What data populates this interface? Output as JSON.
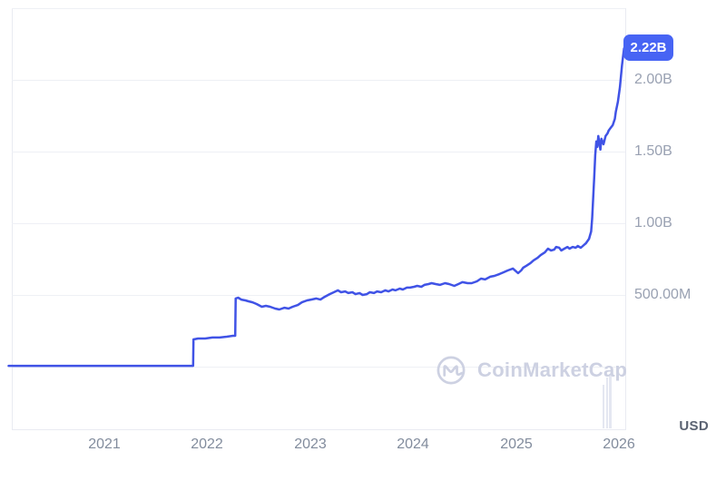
{
  "unit_label": "USD",
  "watermark_text": "CoinMarketCap",
  "badge": {
    "label": "2.22B"
  },
  "colors": {
    "line": "#4053e6",
    "badge_bg": "#4764f4",
    "badge_text": "#ffffff",
    "gridline": "#eef0f5",
    "watermark": "#cdd1e2"
  },
  "decor": {
    "volume_bars": [
      {
        "x": 664,
        "top": 424,
        "h": 48,
        "w": 2
      },
      {
        "x": 667.5,
        "top": 416,
        "h": 56,
        "w": 2
      },
      {
        "x": 670.5,
        "top": 412,
        "h": 60,
        "w": 3
      }
    ]
  },
  "chart_data": {
    "type": "line",
    "title": "",
    "xlabel": "",
    "ylabel": "USD",
    "unit": "USD",
    "legend": "none",
    "grid": "horizontal",
    "x_range": [
      2020.05,
      2026.12
    ],
    "y_range": [
      0,
      2500
    ],
    "value_unit": "millions USD",
    "last_value_label": "2.22B",
    "x_ticks": [
      2021,
      2022,
      2023,
      2024,
      2025,
      2026
    ],
    "y_ticks": [
      {
        "label": "2.00B",
        "value": 2000
      },
      {
        "label": "1.50B",
        "value": 1500
      },
      {
        "label": "1.00B",
        "value": 1000
      },
      {
        "label": "500.00M",
        "value": 500
      }
    ],
    "y_gridline_values": [
      2500,
      2000,
      1500,
      1000,
      500,
      0
    ],
    "points": [
      [
        2020.07,
        6
      ],
      [
        2021.0,
        6
      ],
      [
        2021.5,
        6
      ],
      [
        2021.84,
        6
      ],
      [
        2021.862,
        6
      ],
      [
        2021.866,
        190
      ],
      [
        2021.91,
        196
      ],
      [
        2021.98,
        196
      ],
      [
        2022.05,
        203
      ],
      [
        2022.12,
        203
      ],
      [
        2022.19,
        209
      ],
      [
        2022.25,
        215
      ],
      [
        2022.272,
        215
      ],
      [
        2022.276,
        475
      ],
      [
        2022.3,
        481
      ],
      [
        2022.33,
        468
      ],
      [
        2022.37,
        462
      ],
      [
        2022.4,
        456
      ],
      [
        2022.44,
        449
      ],
      [
        2022.48,
        437
      ],
      [
        2022.53,
        418
      ],
      [
        2022.57,
        424
      ],
      [
        2022.61,
        418
      ],
      [
        2022.66,
        405
      ],
      [
        2022.7,
        399
      ],
      [
        2022.75,
        411
      ],
      [
        2022.79,
        405
      ],
      [
        2022.83,
        418
      ],
      [
        2022.88,
        430
      ],
      [
        2022.92,
        449
      ],
      [
        2022.97,
        462
      ],
      [
        2023.01,
        468
      ],
      [
        2023.06,
        475
      ],
      [
        2023.1,
        468
      ],
      [
        2023.14,
        487
      ],
      [
        2023.19,
        506
      ],
      [
        2023.23,
        519
      ],
      [
        2023.27,
        532
      ],
      [
        2023.3,
        519
      ],
      [
        2023.34,
        525
      ],
      [
        2023.37,
        513
      ],
      [
        2023.41,
        519
      ],
      [
        2023.44,
        506
      ],
      [
        2023.48,
        513
      ],
      [
        2023.51,
        500
      ],
      [
        2023.55,
        506
      ],
      [
        2023.58,
        519
      ],
      [
        2023.62,
        513
      ],
      [
        2023.65,
        525
      ],
      [
        2023.69,
        519
      ],
      [
        2023.73,
        532
      ],
      [
        2023.76,
        525
      ],
      [
        2023.8,
        538
      ],
      [
        2023.83,
        532
      ],
      [
        2023.87,
        544
      ],
      [
        2023.9,
        538
      ],
      [
        2023.94,
        551
      ],
      [
        2023.97,
        551
      ],
      [
        2024.01,
        557
      ],
      [
        2024.04,
        563
      ],
      [
        2024.08,
        557
      ],
      [
        2024.11,
        570
      ],
      [
        2024.15,
        576
      ],
      [
        2024.18,
        582
      ],
      [
        2024.22,
        576
      ],
      [
        2024.26,
        570
      ],
      [
        2024.31,
        582
      ],
      [
        2024.35,
        576
      ],
      [
        2024.4,
        563
      ],
      [
        2024.44,
        576
      ],
      [
        2024.48,
        589
      ],
      [
        2024.53,
        582
      ],
      [
        2024.57,
        582
      ],
      [
        2024.62,
        595
      ],
      [
        2024.66,
        614
      ],
      [
        2024.7,
        608
      ],
      [
        2024.75,
        627
      ],
      [
        2024.79,
        633
      ],
      [
        2024.84,
        646
      ],
      [
        2024.88,
        658
      ],
      [
        2024.92,
        671
      ],
      [
        2024.97,
        684
      ],
      [
        2025.0,
        665
      ],
      [
        2025.02,
        652
      ],
      [
        2025.05,
        671
      ],
      [
        2025.07,
        690
      ],
      [
        2025.1,
        703
      ],
      [
        2025.14,
        722
      ],
      [
        2025.17,
        741
      ],
      [
        2025.21,
        759
      ],
      [
        2025.24,
        778
      ],
      [
        2025.28,
        797
      ],
      [
        2025.31,
        823
      ],
      [
        2025.34,
        810
      ],
      [
        2025.37,
        816
      ],
      [
        2025.39,
        835
      ],
      [
        2025.42,
        829
      ],
      [
        2025.44,
        810
      ],
      [
        2025.47,
        823
      ],
      [
        2025.5,
        835
      ],
      [
        2025.52,
        823
      ],
      [
        2025.55,
        835
      ],
      [
        2025.58,
        829
      ],
      [
        2025.6,
        842
      ],
      [
        2025.63,
        829
      ],
      [
        2025.66,
        848
      ],
      [
        2025.68,
        861
      ],
      [
        2025.71,
        892
      ],
      [
        2025.73,
        943
      ],
      [
        2025.74,
        1032
      ],
      [
        2025.75,
        1171
      ],
      [
        2025.76,
        1323
      ],
      [
        2025.77,
        1475
      ],
      [
        2025.78,
        1570
      ],
      [
        2025.79,
        1532
      ],
      [
        2025.8,
        1608
      ],
      [
        2025.82,
        1513
      ],
      [
        2025.83,
        1589
      ],
      [
        2025.85,
        1551
      ],
      [
        2025.87,
        1608
      ],
      [
        2025.89,
        1627
      ],
      [
        2025.9,
        1646
      ],
      [
        2025.92,
        1665
      ],
      [
        2025.94,
        1684
      ],
      [
        2025.96,
        1728
      ],
      [
        2025.97,
        1778
      ],
      [
        2025.99,
        1848
      ],
      [
        2026.01,
        1949
      ],
      [
        2026.03,
        2101
      ],
      [
        2026.04,
        2160
      ],
      [
        2026.05,
        2220
      ]
    ]
  }
}
